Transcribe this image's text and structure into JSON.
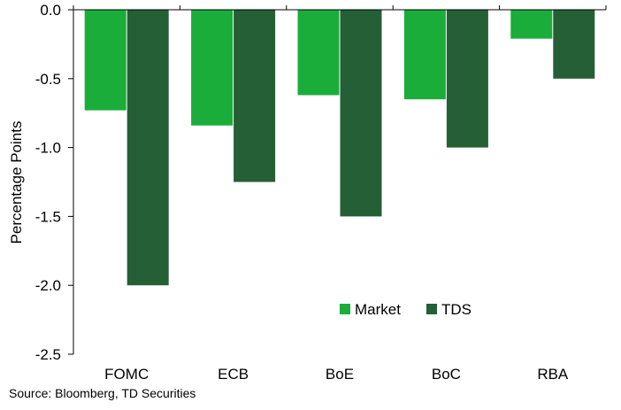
{
  "chart_data": {
    "type": "bar",
    "title": "",
    "xlabel": "",
    "ylabel": "Percentage Points",
    "ylim": [
      -2.5,
      0
    ],
    "yticks": [
      "0.0",
      "-0.5",
      "-1.0",
      "-1.5",
      "-2.0",
      "-2.5"
    ],
    "categories": [
      "FOMC",
      "ECB",
      "BoE",
      "BoC",
      "RBA"
    ],
    "series": [
      {
        "name": "Market",
        "color": "#1aad3a",
        "values": [
          -0.73,
          -0.84,
          -0.62,
          -0.65,
          -0.21
        ]
      },
      {
        "name": "TDS",
        "color": "#245f36",
        "values": [
          -2.0,
          -1.25,
          -1.5,
          -1.0,
          -0.5
        ]
      }
    ],
    "grid": false,
    "legend_position": "lower-right",
    "source": "Source: Bloomberg, TD Securities"
  }
}
